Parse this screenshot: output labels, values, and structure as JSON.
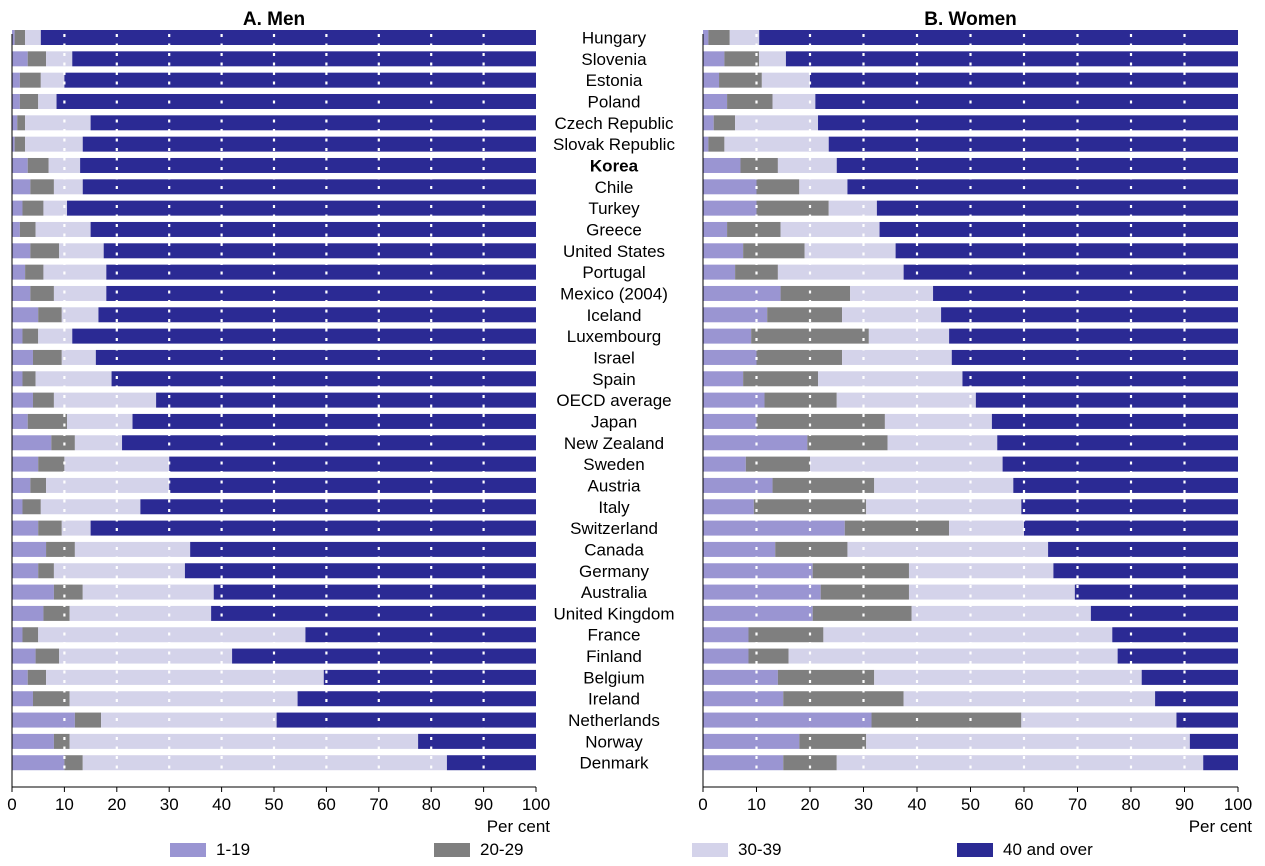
{
  "chart_data": [
    {
      "type": "bar",
      "orientation": "horizontal",
      "stacked": true,
      "title": "A. Men",
      "xlabel": "Per cent",
      "xlim": [
        0,
        100
      ],
      "xticks": [
        "0",
        "10",
        "20",
        "30",
        "40",
        "50",
        "60",
        "70",
        "80",
        "90",
        "100"
      ],
      "categories": [
        "Hungary",
        "Slovenia",
        "Estonia",
        "Poland",
        "Czech Republic",
        "Slovak Republic",
        "Korea",
        "Chile",
        "Turkey",
        "Greece",
        "United States",
        "Portugal",
        "Mexico (2004)",
        "Iceland",
        "Luxembourg",
        "Israel",
        "Spain",
        "OECD average",
        "Japan",
        "New Zealand",
        "Sweden",
        "Austria",
        "Italy",
        "Switzerland",
        "Canada",
        "Germany",
        "Australia",
        "United Kingdom",
        "France",
        "Finland",
        "Belgium",
        "Ireland",
        "Netherlands",
        "Norway",
        "Denmark"
      ],
      "series": [
        {
          "name": "1-19",
          "values": [
            0.5,
            3,
            1.5,
            1.5,
            1,
            0.5,
            3,
            3.5,
            2,
            1.5,
            3.5,
            2.5,
            3.5,
            5,
            2,
            4,
            2,
            4,
            3,
            7.5,
            5,
            3.5,
            2,
            5,
            6.5,
            5,
            8,
            6,
            2,
            4.5,
            3,
            4,
            12,
            8,
            10
          ]
        },
        {
          "name": "20-29",
          "values": [
            2,
            3.5,
            4,
            3.5,
            1.5,
            2,
            4,
            4.5,
            4,
            3,
            5.5,
            3.5,
            4.5,
            4.5,
            3,
            5.5,
            2.5,
            4,
            7.5,
            4.5,
            5,
            3,
            3.5,
            4.5,
            5.5,
            3,
            5.5,
            5,
            3,
            4.5,
            3.5,
            7,
            5,
            3,
            3.5
          ]
        },
        {
          "name": "30-39",
          "values": [
            3,
            5,
            4.5,
            3.5,
            12.5,
            11,
            6,
            5.5,
            4.5,
            10.5,
            8.5,
            12,
            10,
            7,
            6.5,
            6.5,
            14.5,
            19.5,
            12.5,
            9,
            20,
            23.5,
            19,
            5.5,
            22,
            25,
            25,
            27,
            51,
            33,
            53,
            43.5,
            33.5,
            66.5,
            69.5
          ]
        },
        {
          "name": "40 and over",
          "values": [
            94.5,
            88.5,
            90,
            91.5,
            85,
            86.5,
            87,
            86.5,
            89.5,
            85,
            82.5,
            82,
            82,
            83.5,
            88.5,
            84,
            81,
            72.5,
            77,
            79,
            70,
            70,
            75.5,
            85,
            66,
            67,
            61.5,
            62,
            44,
            58,
            40.5,
            45.5,
            49.5,
            22.5,
            17
          ]
        }
      ]
    },
    {
      "type": "bar",
      "orientation": "horizontal",
      "stacked": true,
      "title": "B. Women",
      "xlabel": "Per cent",
      "xlim": [
        0,
        100
      ],
      "xticks": [
        "0",
        "10",
        "20",
        "30",
        "40",
        "50",
        "60",
        "70",
        "80",
        "90",
        "100"
      ],
      "categories": [
        "Hungary",
        "Slovenia",
        "Estonia",
        "Poland",
        "Czech Republic",
        "Slovak Republic",
        "Korea",
        "Chile",
        "Turkey",
        "Greece",
        "United States",
        "Portugal",
        "Mexico (2004)",
        "Iceland",
        "Luxembourg",
        "Israel",
        "Spain",
        "OECD average",
        "Japan",
        "New Zealand",
        "Sweden",
        "Austria",
        "Italy",
        "Switzerland",
        "Canada",
        "Germany",
        "Australia",
        "United Kingdom",
        "France",
        "Finland",
        "Belgium",
        "Ireland",
        "Netherlands",
        "Norway",
        "Denmark"
      ],
      "series": [
        {
          "name": "1-19",
          "values": [
            1,
            4,
            3,
            4.5,
            2,
            1,
            7,
            10,
            10,
            4.5,
            7.5,
            6,
            14.5,
            12,
            9,
            10,
            7.5,
            11.5,
            10,
            19.5,
            8,
            13,
            9.5,
            26.5,
            13.5,
            20.5,
            22,
            20.5,
            8.5,
            8.5,
            14,
            15,
            31.5,
            18,
            15
          ]
        },
        {
          "name": "20-29",
          "values": [
            4,
            6.5,
            8,
            8.5,
            4,
            3,
            7,
            8,
            13.5,
            10,
            11.5,
            8,
            13,
            14,
            22,
            16,
            14,
            13.5,
            24,
            15,
            12,
            19,
            21,
            19.5,
            13.5,
            18,
            16.5,
            18.5,
            14,
            7.5,
            18,
            22.5,
            28,
            12.5,
            10
          ]
        },
        {
          "name": "30-39",
          "values": [
            5.5,
            5,
            9,
            8,
            15.5,
            19.5,
            11,
            9,
            9,
            18.5,
            17,
            23.5,
            15.5,
            18.5,
            15,
            20.5,
            27,
            26,
            20,
            20.5,
            36,
            26,
            29,
            14,
            37.5,
            27,
            31,
            33.5,
            54,
            61.5,
            50,
            47,
            29,
            60.5,
            68.5
          ]
        },
        {
          "name": "40 and over",
          "values": [
            89.5,
            84.5,
            80,
            79,
            78.5,
            76.5,
            75,
            73,
            67.5,
            67,
            64,
            62.5,
            57,
            55.5,
            54,
            53.5,
            51.5,
            49,
            46,
            45,
            44,
            42,
            40.5,
            40,
            35.5,
            34.5,
            30.5,
            27.5,
            23.5,
            22.5,
            18,
            15.5,
            11.5,
            9,
            6.5
          ]
        }
      ]
    }
  ],
  "highlight_category": "Korea",
  "legend": {
    "items": [
      {
        "label": "1-19",
        "color": "#9a95d2"
      },
      {
        "label": "20-29",
        "color": "#7f7f7f"
      },
      {
        "label": "30-39",
        "color": "#d4d3ea"
      },
      {
        "label": "40 and over",
        "color": "#2b2a94"
      }
    ]
  }
}
